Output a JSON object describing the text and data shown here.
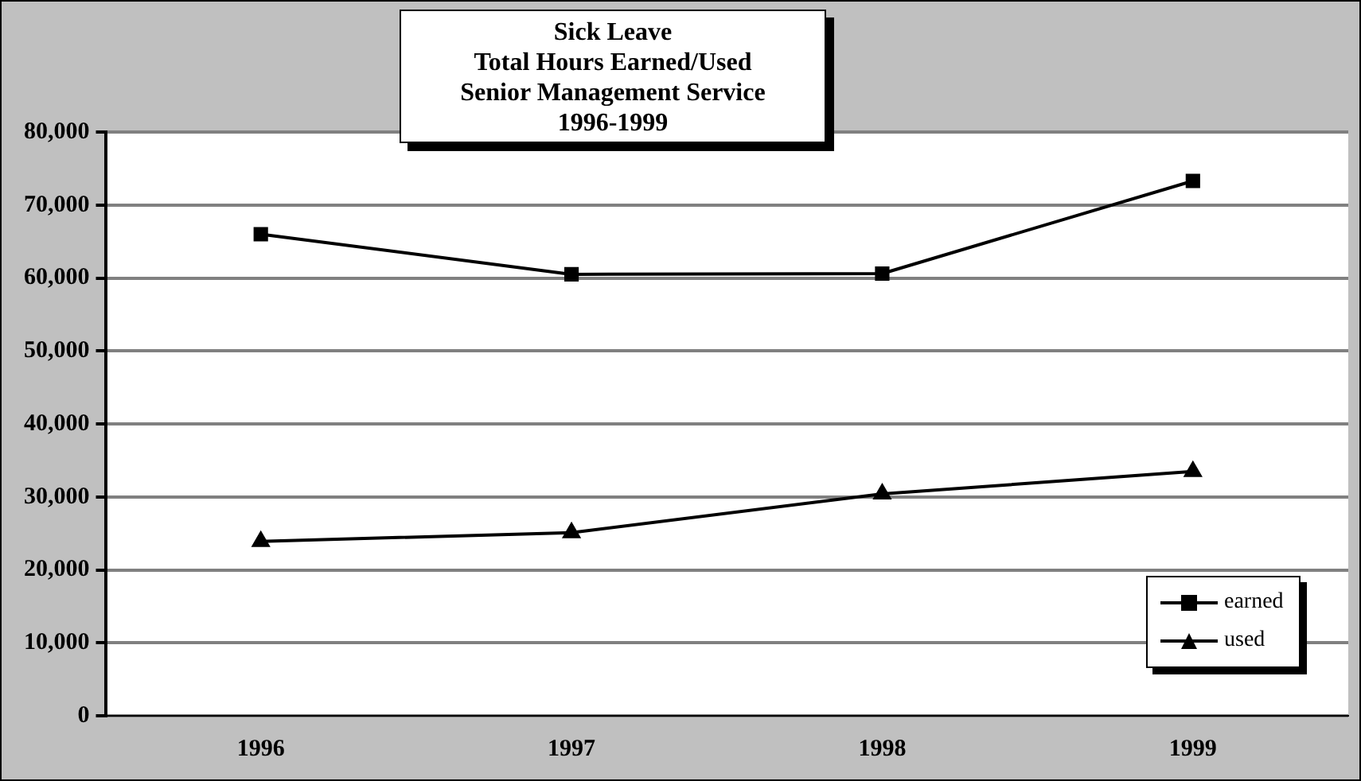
{
  "chart_data": {
    "type": "line",
    "title": "Sick Leave\nTotal Hours Earned/Used\nSenior Management Service\n1996-1999",
    "categories": [
      "1996",
      "1997",
      "1998",
      "1999"
    ],
    "series": [
      {
        "name": "earned",
        "color": "#000000",
        "values": [
          66000,
          60500,
          60600,
          73300
        ],
        "marker": "square"
      },
      {
        "name": "used",
        "color": "#000000",
        "values": [
          23900,
          25100,
          30400,
          33500
        ],
        "marker": "triangle"
      }
    ],
    "ylim": [
      0,
      80000
    ],
    "yticks": [
      0,
      {
        "value": 10000,
        "label": "10,000"
      },
      {
        "value": 20000,
        "label": "20,000"
      },
      {
        "value": 30000,
        "label": "30,000"
      },
      {
        "value": 40000,
        "label": "40,000"
      },
      {
        "value": 50000,
        "label": "50,000"
      },
      {
        "value": 60000,
        "label": "60,000"
      },
      {
        "value": 70000,
        "label": "70,000"
      },
      {
        "value": 80000,
        "label": "80,000"
      }
    ],
    "grid": "y",
    "legend": "bottom right"
  }
}
